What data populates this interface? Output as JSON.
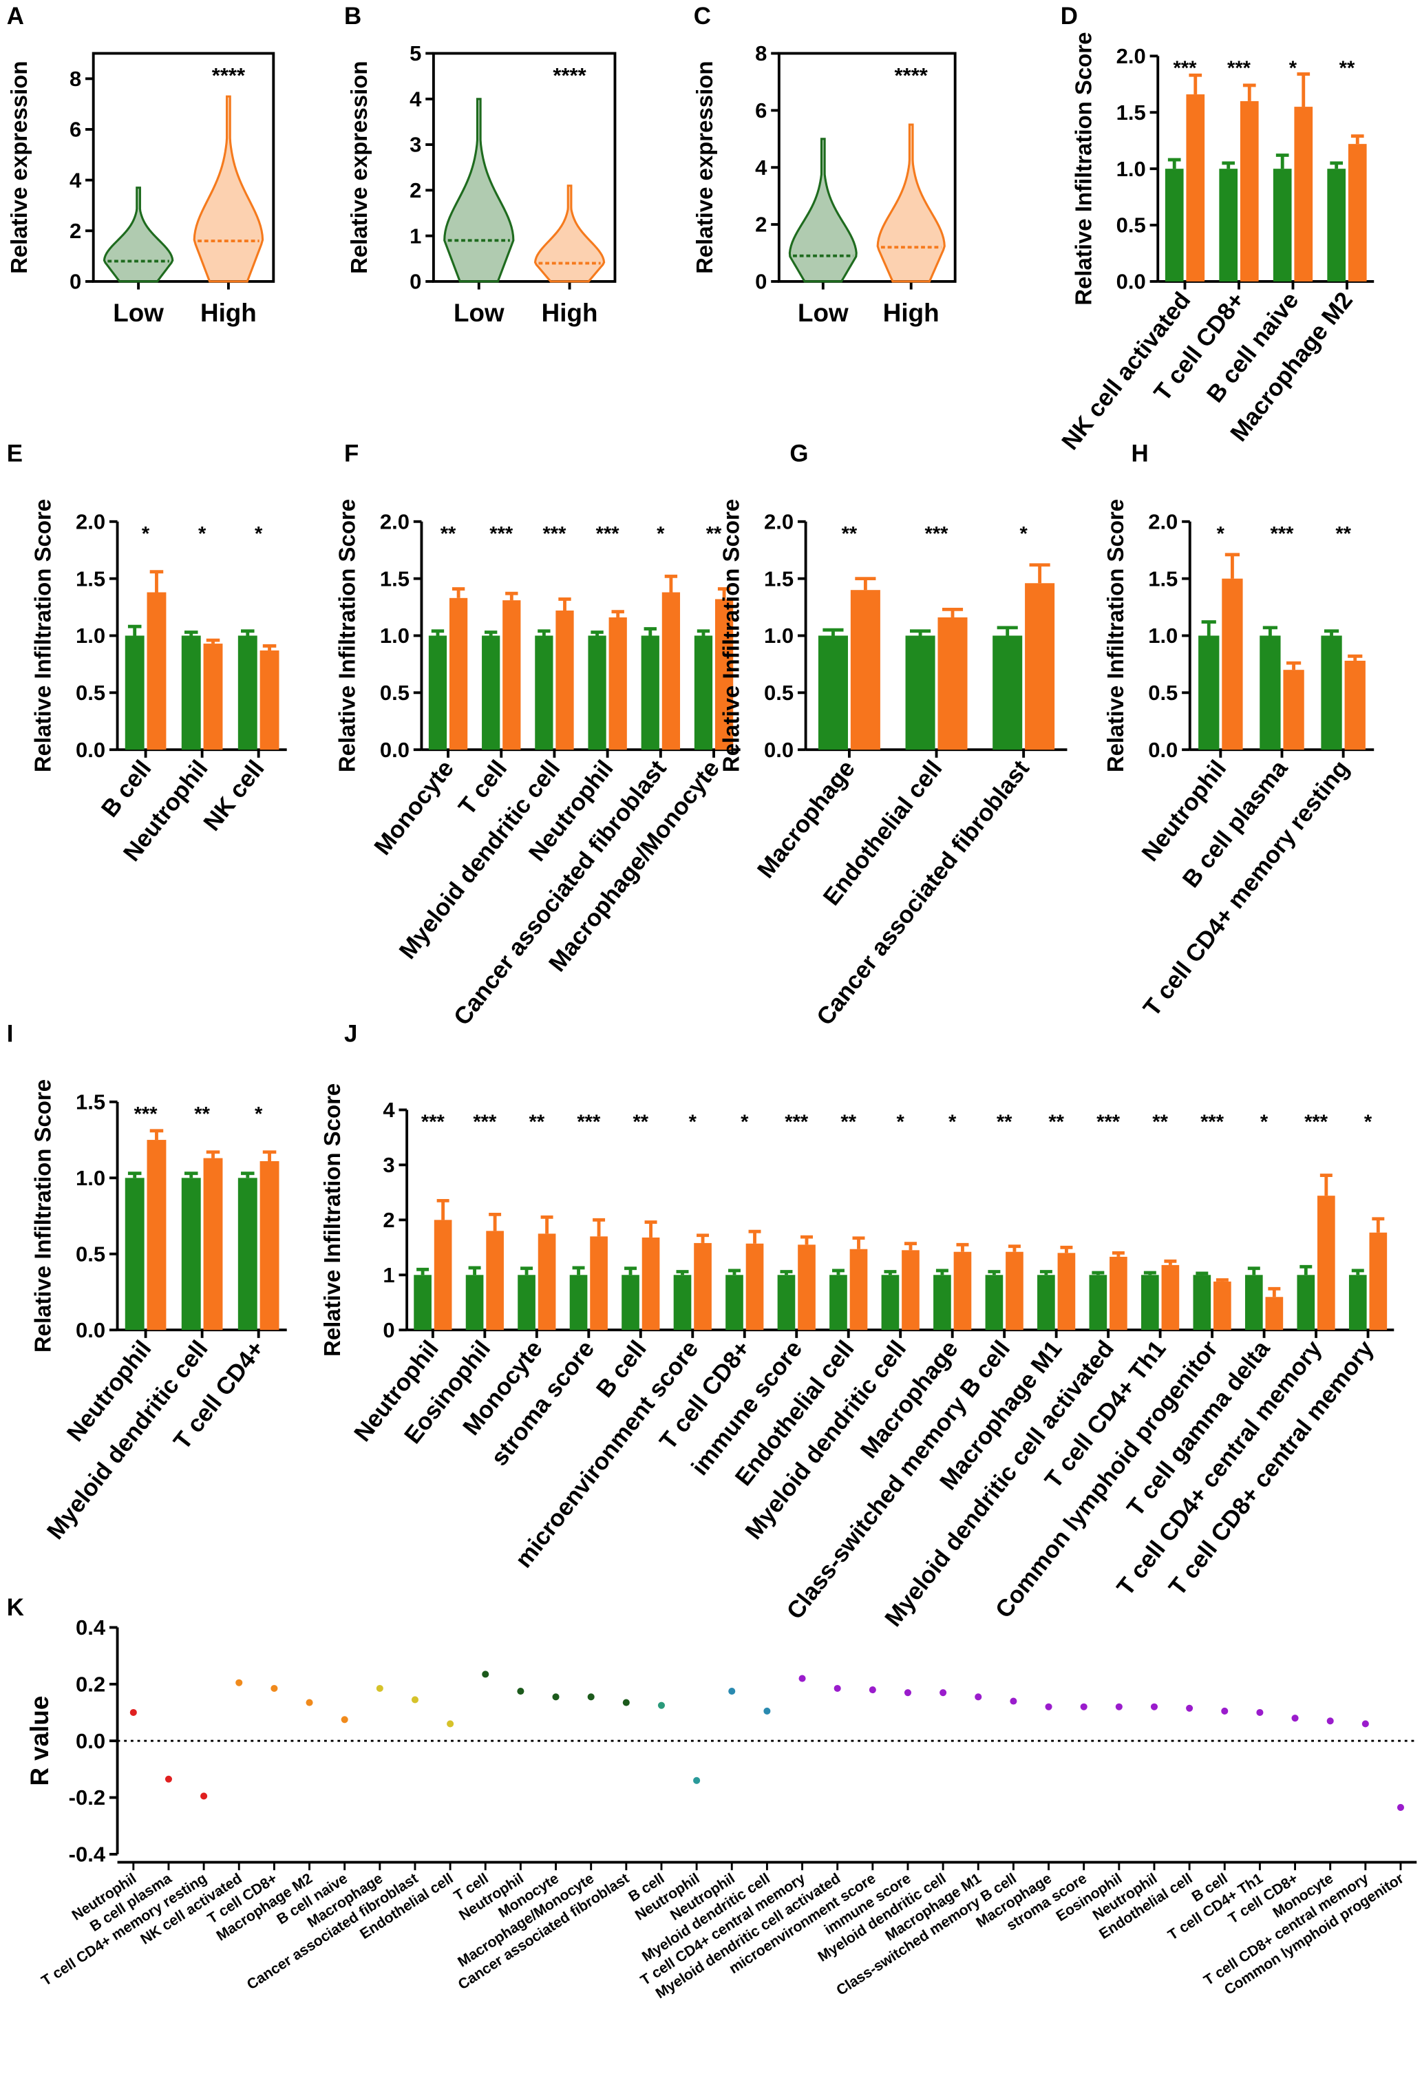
{
  "chart_data": [
    {
      "type": "violin",
      "label": "A",
      "ylabel": "Relative expression",
      "categories": [
        "Low",
        "High"
      ],
      "colors": [
        "#1e6b1e",
        "#f57a1d"
      ],
      "max": [
        3.7,
        7.3
      ],
      "median": [
        0.8,
        1.6
      ],
      "annotation": "****",
      "ylim": [
        0,
        9
      ],
      "yticks": [
        0,
        2,
        4,
        6,
        8
      ]
    },
    {
      "type": "violin",
      "label": "B",
      "ylabel": "Relative expression",
      "categories": [
        "Low",
        "High"
      ],
      "colors": [
        "#1e6b1e",
        "#f57a1d"
      ],
      "max": [
        4.0,
        2.1
      ],
      "median": [
        0.9,
        0.4
      ],
      "annotation": "****",
      "ylim": [
        0,
        5
      ],
      "yticks": [
        0,
        1,
        2,
        3,
        4,
        5
      ]
    },
    {
      "type": "violin",
      "label": "C",
      "ylabel": "Relative expression",
      "categories": [
        "Low",
        "High"
      ],
      "colors": [
        "#1e6b1e",
        "#f57a1d"
      ],
      "max": [
        5.0,
        5.5
      ],
      "median": [
        0.9,
        1.2
      ],
      "annotation": "****",
      "ylim": [
        0,
        8
      ],
      "yticks": [
        0,
        2,
        4,
        6,
        8
      ]
    },
    {
      "type": "bar",
      "label": "D",
      "ylabel": "Relative Infiltration Score",
      "categories": [
        "NK cell activated",
        "T cell CD8+",
        "B cell naive",
        "Macrophage M2"
      ],
      "series": [
        {
          "color": "#1f8a1f",
          "values": [
            1,
            1,
            1,
            1
          ],
          "errors": [
            0.08,
            0.05,
            0.12,
            0.05
          ]
        },
        {
          "color": "#f7751d",
          "values": [
            1.66,
            1.6,
            1.55,
            1.22
          ],
          "errors": [
            0.17,
            0.14,
            0.29,
            0.07
          ]
        }
      ],
      "annotations": [
        "***",
        "***",
        "*",
        "**"
      ],
      "ylim": [
        0,
        2
      ],
      "yticks": [
        {
          "value": 0,
          "label": "0.0"
        },
        0.5,
        {
          "value": 1,
          "label": "1.0"
        },
        1.5,
        {
          "value": 2,
          "label": "2.0"
        }
      ]
    },
    {
      "type": "bar",
      "label": "E",
      "ylabel": "Relative Infiltration Score",
      "categories": [
        "B cell",
        "Neutrophil",
        "NK cell"
      ],
      "series": [
        {
          "color": "#1f8a1f",
          "values": [
            1,
            1,
            1
          ],
          "errors": [
            0.08,
            0.03,
            0.04
          ]
        },
        {
          "color": "#f7751d",
          "values": [
            1.38,
            0.93,
            0.87
          ],
          "errors": [
            0.18,
            0.03,
            0.04
          ]
        }
      ],
      "annotations": [
        "*",
        "*",
        "*"
      ],
      "ylim": [
        0,
        2
      ],
      "yticks": [
        {
          "value": 0,
          "label": "0.0"
        },
        0.5,
        {
          "value": 1,
          "label": "1.0"
        },
        1.5,
        {
          "value": 2,
          "label": "2.0"
        }
      ]
    },
    {
      "type": "bar",
      "label": "F",
      "ylabel": "Relative Infiltration Score",
      "categories": [
        "Monocyte",
        "T cell",
        "Myeloid dendritic cell",
        "Neutrophil",
        "Cancer associated fibroblast",
        "Macrophage/Monocyte"
      ],
      "series": [
        {
          "color": "#1f8a1f",
          "values": [
            1,
            1,
            1,
            1,
            1,
            1
          ],
          "errors": [
            0.04,
            0.03,
            0.04,
            0.03,
            0.06,
            0.04
          ]
        },
        {
          "color": "#f7751d",
          "values": [
            1.33,
            1.31,
            1.22,
            1.16,
            1.38,
            1.32
          ],
          "errors": [
            0.08,
            0.06,
            0.1,
            0.05,
            0.14,
            0.09
          ]
        }
      ],
      "annotations": [
        "**",
        "***",
        "***",
        "***",
        "*",
        "**"
      ],
      "ylim": [
        0,
        2
      ],
      "yticks": [
        {
          "value": 0,
          "label": "0.0"
        },
        0.5,
        {
          "value": 1,
          "label": "1.0"
        },
        1.5,
        {
          "value": 2,
          "label": "2.0"
        }
      ]
    },
    {
      "type": "bar",
      "label": "G",
      "ylabel": "Relative Infiltration Score",
      "categories": [
        "Macrophage",
        "Endothelial cell",
        "Cancer associated fibroblast"
      ],
      "series": [
        {
          "color": "#1f8a1f",
          "values": [
            1,
            1,
            1
          ],
          "errors": [
            0.05,
            0.04,
            0.07
          ]
        },
        {
          "color": "#f7751d",
          "values": [
            1.4,
            1.16,
            1.46
          ],
          "errors": [
            0.1,
            0.07,
            0.16
          ]
        }
      ],
      "annotations": [
        "**",
        "***",
        "*"
      ],
      "ylim": [
        0,
        2
      ],
      "yticks": [
        {
          "value": 0,
          "label": "0.0"
        },
        0.5,
        {
          "value": 1,
          "label": "1.0"
        },
        1.5,
        {
          "value": 2,
          "label": "2.0"
        }
      ]
    },
    {
      "type": "bar",
      "label": "H",
      "ylabel": "Relative Infiltration Score",
      "categories": [
        "Neutrophil",
        "B cell plasma",
        "T cell CD4+ memory resting"
      ],
      "series": [
        {
          "color": "#1f8a1f",
          "values": [
            1,
            1,
            1
          ],
          "errors": [
            0.12,
            0.07,
            0.04
          ]
        },
        {
          "color": "#f7751d",
          "values": [
            1.5,
            0.7,
            0.78
          ],
          "errors": [
            0.21,
            0.06,
            0.04
          ]
        }
      ],
      "annotations": [
        "*",
        "***",
        "**"
      ],
      "ylim": [
        0,
        2
      ],
      "yticks": [
        {
          "value": 0,
          "label": "0.0"
        },
        0.5,
        {
          "value": 1,
          "label": "1.0"
        },
        1.5,
        {
          "value": 2,
          "label": "2.0"
        }
      ]
    },
    {
      "type": "bar",
      "label": "I",
      "ylabel": "Relative Infiltration Score",
      "categories": [
        "Neutrophil",
        "Myeloid dendritic cell",
        "T cell CD4+"
      ],
      "series": [
        {
          "color": "#1f8a1f",
          "values": [
            1,
            1,
            1
          ],
          "errors": [
            0.03,
            0.03,
            0.03
          ]
        },
        {
          "color": "#f7751d",
          "values": [
            1.25,
            1.13,
            1.11
          ],
          "errors": [
            0.06,
            0.04,
            0.06
          ]
        }
      ],
      "annotations": [
        "***",
        "**",
        "*"
      ],
      "ylim": [
        0,
        1.5
      ],
      "yticks": [
        {
          "value": 0,
          "label": "0.0"
        },
        0.5,
        {
          "value": 1,
          "label": "1.0"
        },
        1.5
      ]
    },
    {
      "type": "bar",
      "label": "J",
      "ylabel": "Relative Infiltration Score",
      "categories": [
        "Neutrophil",
        "Eosinophil",
        "Monocyte",
        "stroma score",
        "B cell",
        "microenvironment score",
        "T cell CD8+",
        "immune score",
        "Endothelial cell",
        "Myeloid dendritic cell",
        "Macrophage",
        "Class-switched memory B cell",
        "Macrophage M1",
        "Myeloid dendritic cell activated",
        "T cell CD4+ Th1",
        "Common lymphoid progenitor",
        "T cell gamma delta",
        "T cell CD4+ central memory",
        "T cell CD8+ central memory"
      ],
      "series": [
        {
          "color": "#1f8a1f",
          "values": [
            1,
            1,
            1,
            1,
            1,
            1,
            1,
            1,
            1,
            1,
            1,
            1,
            1,
            1,
            1,
            1,
            1,
            1,
            1
          ],
          "errors": [
            0.1,
            0.13,
            0.12,
            0.13,
            0.12,
            0.06,
            0.08,
            0.06,
            0.08,
            0.06,
            0.08,
            0.06,
            0.06,
            0.04,
            0.04,
            0.03,
            0.12,
            0.15,
            0.08
          ]
        },
        {
          "color": "#f7751d",
          "values": [
            2.0,
            1.8,
            1.75,
            1.7,
            1.68,
            1.58,
            1.57,
            1.55,
            1.47,
            1.45,
            1.42,
            1.42,
            1.4,
            1.33,
            1.18,
            0.88,
            0.6,
            2.44,
            1.77
          ],
          "errors": [
            0.35,
            0.3,
            0.3,
            0.3,
            0.28,
            0.14,
            0.22,
            0.14,
            0.2,
            0.12,
            0.13,
            0.1,
            0.1,
            0.07,
            0.07,
            0.03,
            0.15,
            0.37,
            0.25
          ]
        }
      ],
      "annotations": [
        "***",
        "***",
        "**",
        "***",
        "**",
        "*",
        "*",
        "***",
        "**",
        "*",
        "*",
        "**",
        "**",
        "***",
        "**",
        "***",
        "*",
        "***",
        "*"
      ],
      "ylim": [
        0,
        4
      ],
      "yticks": [
        0,
        1,
        2,
        3,
        4
      ]
    },
    {
      "type": "dot",
      "label": "K",
      "ylabel": "R value",
      "categories": [
        "Neutrophil",
        "B cell plasma",
        "T cell CD4+ memory resting",
        "NK cell activated",
        "T cell CD8+",
        "Macrophage M2",
        "B cell naive",
        "Macrophage",
        "Cancer associated fibroblast",
        "Endothelial cell",
        "T cell",
        "Neutrophil",
        "Monocyte",
        "Macrophage/Monocyte",
        "Cancer associated fibroblast",
        "B cell",
        "Neutrophil",
        "Neutrophil",
        "Myeloid dendritic cell",
        "T cell CD4+ central memory",
        "Myeloid dendritic cell activated",
        "microenvironment score",
        "immune score",
        "Myeloid dendritic cell",
        "Macrophage M1",
        "Class-switched memory B cell",
        "Macrophage",
        "stroma score",
        "Eosinophil",
        "Neutrophil",
        "Endothelial cell",
        "B cell",
        "T cell CD4+ Th1",
        "T cell CD8+",
        "Monocyte",
        "T cell CD8+ central memory",
        "Common lymphoid progenitor"
      ],
      "values": [
        0.1,
        -0.135,
        -0.195,
        0.205,
        0.185,
        0.135,
        0.075,
        0.185,
        0.145,
        0.06,
        0.235,
        0.175,
        0.155,
        0.155,
        0.135,
        0.125,
        -0.14,
        0.175,
        0.105,
        0.22,
        0.185,
        0.18,
        0.17,
        0.17,
        0.155,
        0.14,
        0.12,
        0.12,
        0.12,
        0.12,
        0.115,
        0.105,
        0.1,
        0.08,
        0.07,
        0.06,
        -0.235
      ],
      "colors": [
        "#e02020",
        "#e02020",
        "#e02020",
        "#f08a1c",
        "#f08a1c",
        "#f08a1c",
        "#f08a1c",
        "#d6c22a",
        "#d6c22a",
        "#d6c22a",
        "#1c5a1c",
        "#1c5a1c",
        "#1c5a1c",
        "#1c5a1c",
        "#1c5a1c",
        "#2a9a7a",
        "#2a9a9a",
        "#2a8ab0",
        "#2a8ab0",
        "#9a1ccc",
        "#9a1ccc",
        "#9a1ccc",
        "#9a1ccc",
        "#9a1ccc",
        "#9a1ccc",
        "#9a1ccc",
        "#9a1ccc",
        "#9a1ccc",
        "#9a1ccc",
        "#9a1ccc",
        "#9a1ccc",
        "#9a1ccc",
        "#9a1ccc",
        "#9a1ccc",
        "#9a1ccc",
        "#9a1ccc",
        "#9a1ccc"
      ],
      "reference_line": 0,
      "ylim": [
        -0.4,
        0.4
      ],
      "yticks": [
        -0.4,
        -0.2,
        {
          "value": 0,
          "label": "0.0"
        },
        0.2,
        0.4
      ]
    }
  ]
}
